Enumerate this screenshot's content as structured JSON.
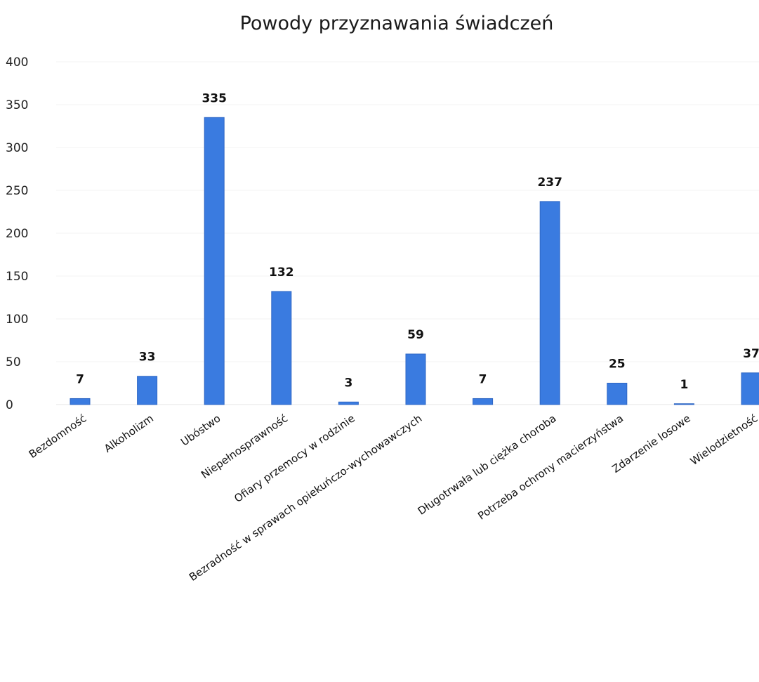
{
  "chart_data": {
    "type": "bar",
    "title": "Powody przyznawania świadczeń",
    "xlabel": "",
    "ylabel": "",
    "ylim": [
      0,
      400
    ],
    "yticks": [
      "0",
      "50",
      "100",
      "150",
      "200",
      "250",
      "300",
      "350",
      "400"
    ],
    "grid": true,
    "legend": "none",
    "bar_color": "#3a7be0",
    "categories": [
      "Bezdomność",
      "Alkoholizm",
      "Ubóstwo",
      "Niepełnosprawność",
      "Ofiary przemocy w rodzinie",
      "Bezradność w sprawach opiekuńczo-wychowawczych",
      "",
      "Długotrwała lub ciężka choroba",
      "Potrzeba ochrony macierzyństwa",
      "Zdarzenie losowe",
      "Wielodzietność"
    ],
    "values": [
      7,
      33,
      335,
      132,
      3,
      59,
      7,
      237,
      25,
      1,
      37
    ],
    "data_labels": [
      "7",
      "33",
      "335",
      "132",
      "3",
      "59",
      "7",
      "237",
      "25",
      "1",
      "37"
    ]
  }
}
